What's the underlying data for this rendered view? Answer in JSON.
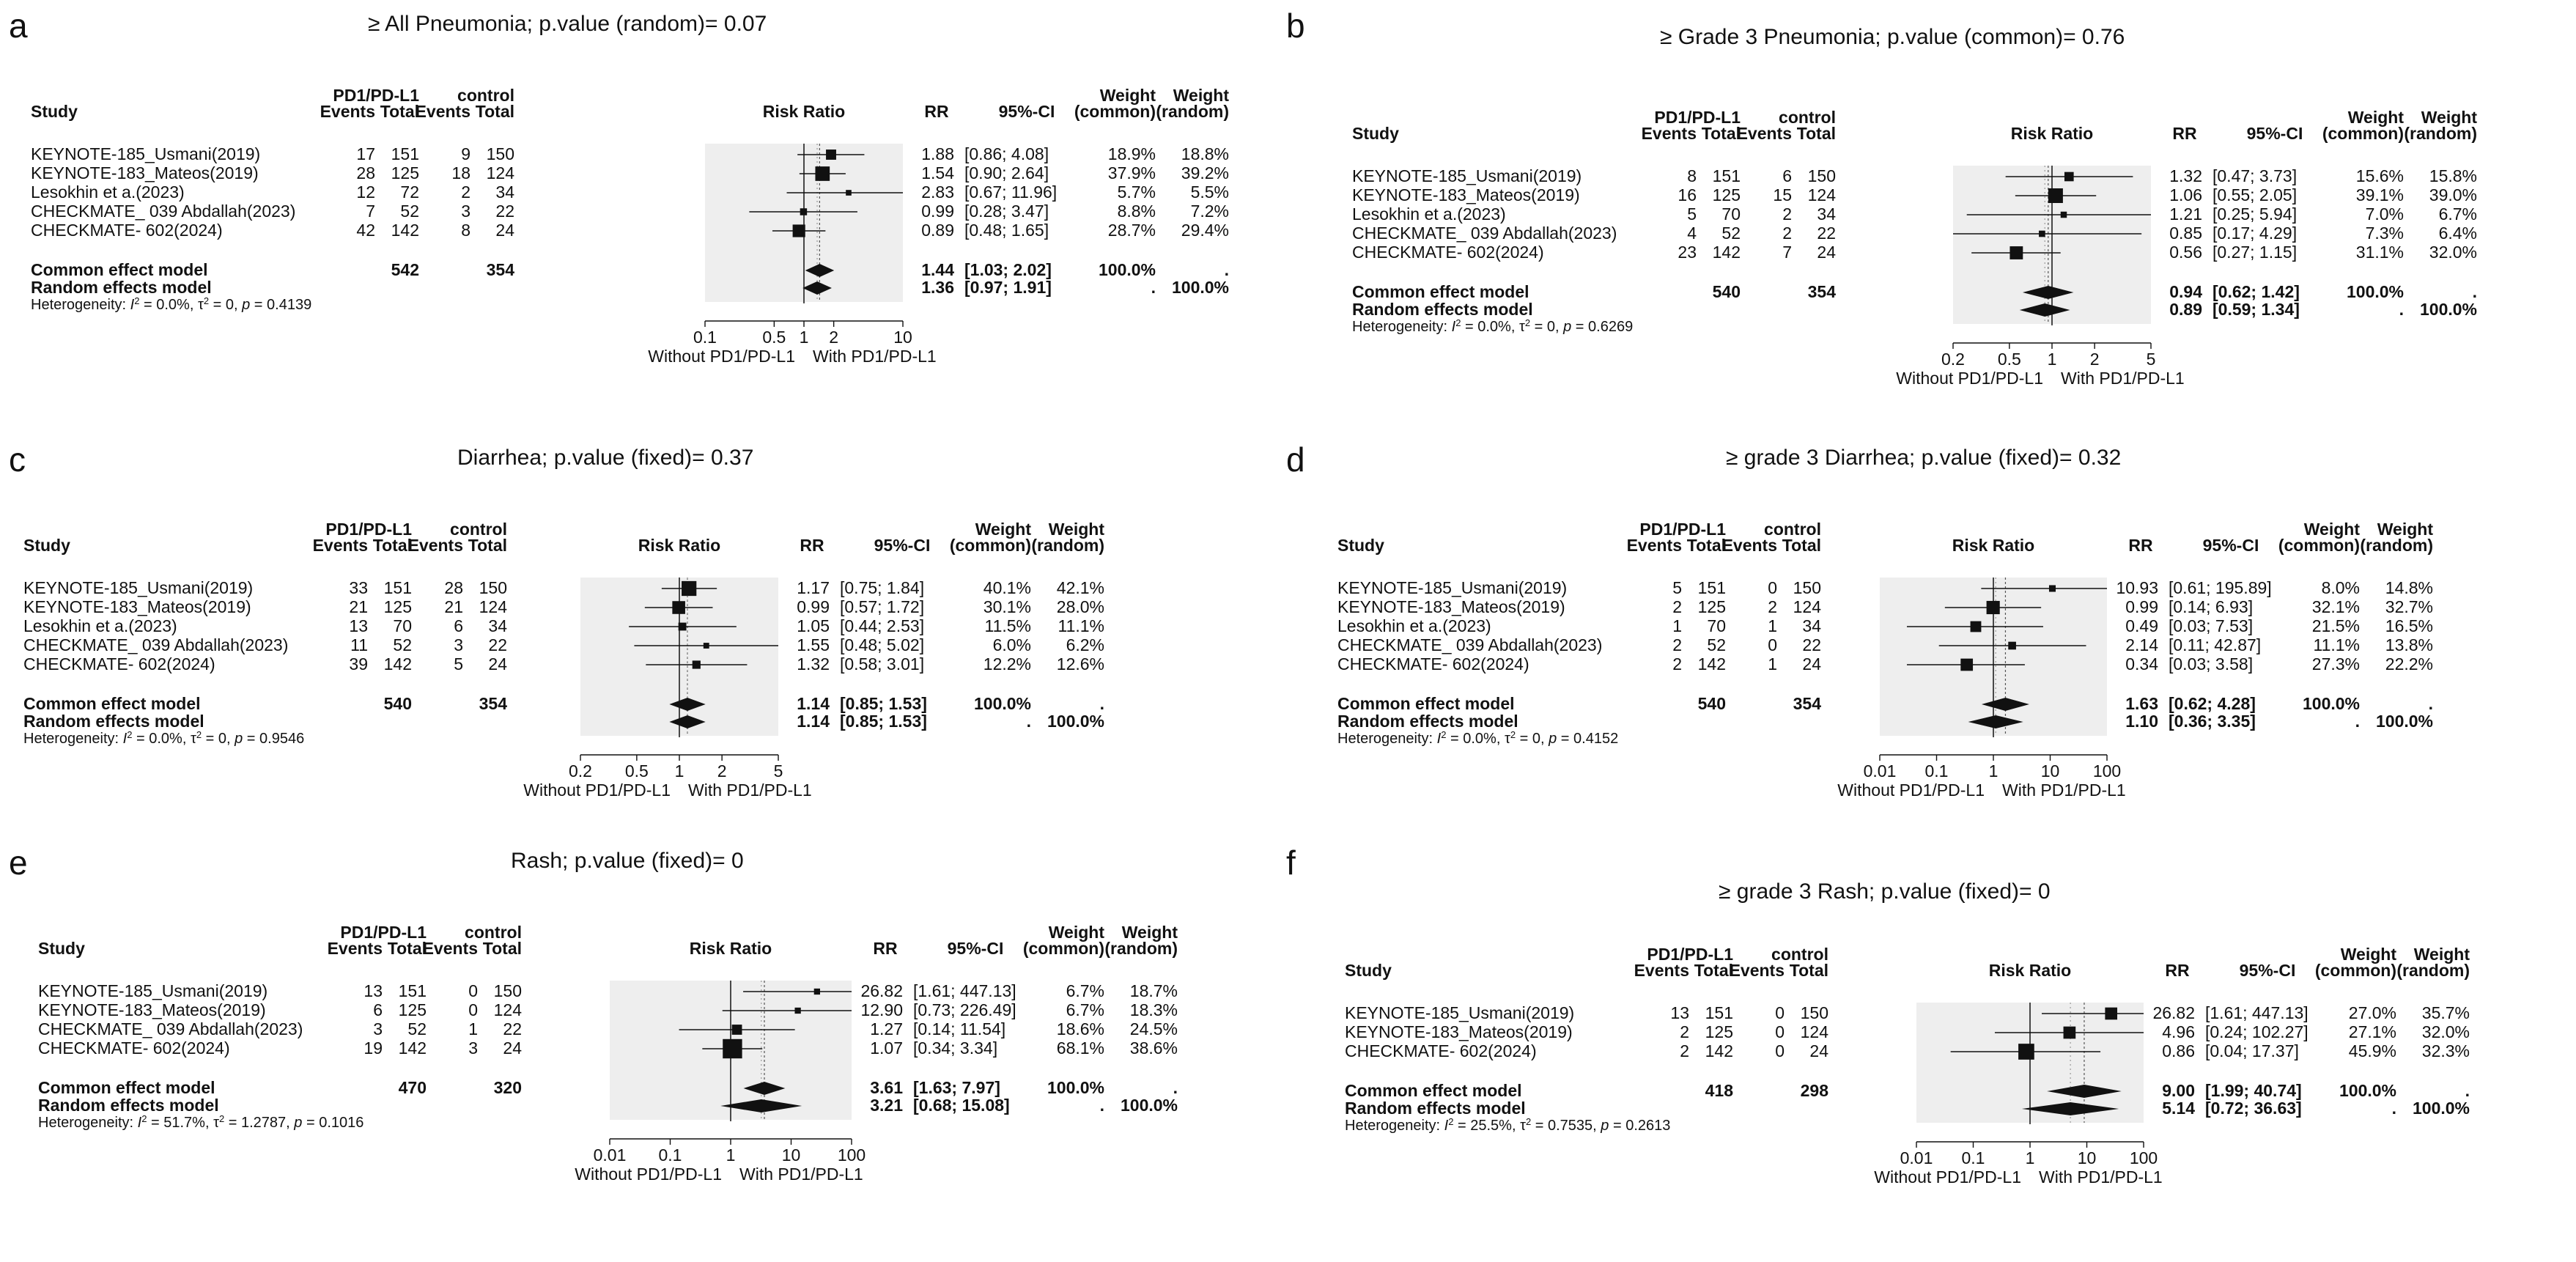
{
  "colors": {
    "background": "#ffffff",
    "plot_band": "#eeeeee",
    "ink": "#111111",
    "ref_line": "#555555",
    "grid": "#999999"
  },
  "columns": {
    "study": "Study",
    "treat_group": "PD1/PD-L1",
    "control_group": "control",
    "events": "Events",
    "total": "Total",
    "risk_ratio": "Risk Ratio",
    "rr": "RR",
    "ci": "95%-CI",
    "weight": "Weight",
    "common": "(common)",
    "random": "(random)"
  },
  "axis_labels": {
    "left": "Without PD1/PD-L1",
    "right": "With PD1/PD-L1"
  },
  "summary_labels": {
    "common": "Common effect model",
    "random": "Random effects model",
    "dot": "."
  },
  "chart_data": [
    {
      "type": "forest",
      "letter": "a",
      "title": "≥ All Pneumonia;  p.value (random)= 0.07",
      "xscale": "log",
      "xlim": [
        0.1,
        10
      ],
      "ticks": [
        {
          "v": 0.1,
          "label": "0.1"
        },
        {
          "v": 0.5,
          "label": "0.5"
        },
        {
          "v": 1,
          "label": "1"
        },
        {
          "v": 2,
          "label": "2"
        },
        {
          "v": 10,
          "label": "10"
        }
      ],
      "studies": [
        {
          "name": "KEYNOTE-185_Usmani(2019)",
          "e1": "17",
          "n1": "151",
          "e2": "9",
          "n2": "150",
          "rr": 1.88,
          "lo": 0.86,
          "hi": 4.08,
          "rr_text": "1.88",
          "ci_text": "[0.86;  4.08]",
          "wc": "18.9%",
          "wr": "18.8%"
        },
        {
          "name": "KEYNOTE-183_Mateos(2019)",
          "e1": "28",
          "n1": "125",
          "e2": "18",
          "n2": "124",
          "rr": 1.54,
          "lo": 0.9,
          "hi": 2.64,
          "rr_text": "1.54",
          "ci_text": "[0.90;  2.64]",
          "wc": "37.9%",
          "wr": "39.2%"
        },
        {
          "name": "Lesokhin et a.(2023)",
          "e1": "12",
          "n1": "72",
          "e2": "2",
          "n2": "34",
          "rr": 2.83,
          "lo": 0.67,
          "hi": 11.96,
          "rr_text": "2.83",
          "ci_text": "[0.67; 11.96]",
          "wc": "5.7%",
          "wr": "5.5%"
        },
        {
          "name": "CHECKMATE_ 039 Abdallah(2023)",
          "e1": "7",
          "n1": "52",
          "e2": "3",
          "n2": "22",
          "rr": 0.99,
          "lo": 0.28,
          "hi": 3.47,
          "rr_text": "0.99",
          "ci_text": "[0.28;  3.47]",
          "wc": "8.8%",
          "wr": "7.2%"
        },
        {
          "name": "CHECKMATE- 602(2024)",
          "e1": "42",
          "n1": "142",
          "e2": "8",
          "n2": "24",
          "rr": 0.89,
          "lo": 0.48,
          "hi": 1.65,
          "rr_text": "0.89",
          "ci_text": "[0.48;  1.65]",
          "wc": "28.7%",
          "wr": "29.4%"
        }
      ],
      "common": {
        "rr": 1.44,
        "lo": 1.03,
        "hi": 2.02,
        "rr_text": "1.44",
        "ci_text": "[1.03;  2.02]",
        "n1": "542",
        "n2": "354",
        "wc": "100.0%"
      },
      "random": {
        "rr": 1.36,
        "lo": 0.97,
        "hi": 1.91,
        "rr_text": "1.36",
        "ci_text": "[0.97;  1.91]",
        "wr": "100.0%"
      },
      "heterogeneity": {
        "prefix": "Heterogeneity:",
        "i2": "0.0%",
        "tau2": "0",
        "p": "0.4139"
      }
    },
    {
      "type": "forest",
      "letter": "b",
      "title": "≥ Grade 3 Pneumonia;  p.value (common)= 0.76",
      "xscale": "log",
      "xlim": [
        0.2,
        5
      ],
      "ticks": [
        {
          "v": 0.2,
          "label": "0.2"
        },
        {
          "v": 0.5,
          "label": "0.5"
        },
        {
          "v": 1,
          "label": "1"
        },
        {
          "v": 2,
          "label": "2"
        },
        {
          "v": 5,
          "label": "5"
        }
      ],
      "studies": [
        {
          "name": "KEYNOTE-185_Usmani(2019)",
          "e1": "8",
          "n1": "151",
          "e2": "6",
          "n2": "150",
          "rr": 1.32,
          "lo": 0.47,
          "hi": 3.73,
          "rr_text": "1.32",
          "ci_text": "[0.47; 3.73]",
          "wc": "15.6%",
          "wr": "15.8%"
        },
        {
          "name": "KEYNOTE-183_Mateos(2019)",
          "e1": "16",
          "n1": "125",
          "e2": "15",
          "n2": "124",
          "rr": 1.06,
          "lo": 0.55,
          "hi": 2.05,
          "rr_text": "1.06",
          "ci_text": "[0.55; 2.05]",
          "wc": "39.1%",
          "wr": "39.0%"
        },
        {
          "name": "Lesokhin et a.(2023)",
          "e1": "5",
          "n1": "70",
          "e2": "2",
          "n2": "34",
          "rr": 1.21,
          "lo": 0.25,
          "hi": 5.94,
          "rr_text": "1.21",
          "ci_text": "[0.25; 5.94]",
          "wc": "7.0%",
          "wr": "6.7%"
        },
        {
          "name": "CHECKMATE_ 039 Abdallah(2023)",
          "e1": "4",
          "n1": "52",
          "e2": "2",
          "n2": "22",
          "rr": 0.85,
          "lo": 0.17,
          "hi": 4.29,
          "rr_text": "0.85",
          "ci_text": "[0.17; 4.29]",
          "wc": "7.3%",
          "wr": "6.4%"
        },
        {
          "name": "CHECKMATE- 602(2024)",
          "e1": "23",
          "n1": "142",
          "e2": "7",
          "n2": "24",
          "rr": 0.56,
          "lo": 0.27,
          "hi": 1.15,
          "rr_text": "0.56",
          "ci_text": "[0.27; 1.15]",
          "wc": "31.1%",
          "wr": "32.0%"
        }
      ],
      "common": {
        "rr": 0.94,
        "lo": 0.62,
        "hi": 1.42,
        "rr_text": "0.94",
        "ci_text": "[0.62; 1.42]",
        "n1": "540",
        "n2": "354",
        "wc": "100.0%"
      },
      "random": {
        "rr": 0.89,
        "lo": 0.59,
        "hi": 1.34,
        "rr_text": "0.89",
        "ci_text": "[0.59; 1.34]",
        "wr": "100.0%"
      },
      "heterogeneity": {
        "prefix": "Heterogeneity:",
        "i2": "0.0%",
        "tau2": "0",
        "p": "0.6269"
      }
    },
    {
      "type": "forest",
      "letter": "c",
      "title": "Diarrhea;  p.value (fixed)= 0.37",
      "xscale": "log",
      "xlim": [
        0.2,
        5
      ],
      "ticks": [
        {
          "v": 0.2,
          "label": "0.2"
        },
        {
          "v": 0.5,
          "label": "0.5"
        },
        {
          "v": 1,
          "label": "1"
        },
        {
          "v": 2,
          "label": "2"
        },
        {
          "v": 5,
          "label": "5"
        }
      ],
      "studies": [
        {
          "name": "KEYNOTE-185_Usmani(2019)",
          "e1": "33",
          "n1": "151",
          "e2": "28",
          "n2": "150",
          "rr": 1.17,
          "lo": 0.75,
          "hi": 1.84,
          "rr_text": "1.17",
          "ci_text": "[0.75; 1.84]",
          "wc": "40.1%",
          "wr": "42.1%"
        },
        {
          "name": "KEYNOTE-183_Mateos(2019)",
          "e1": "21",
          "n1": "125",
          "e2": "21",
          "n2": "124",
          "rr": 0.99,
          "lo": 0.57,
          "hi": 1.72,
          "rr_text": "0.99",
          "ci_text": "[0.57; 1.72]",
          "wc": "30.1%",
          "wr": "28.0%"
        },
        {
          "name": "Lesokhin et a.(2023)",
          "e1": "13",
          "n1": "70",
          "e2": "6",
          "n2": "34",
          "rr": 1.05,
          "lo": 0.44,
          "hi": 2.53,
          "rr_text": "1.05",
          "ci_text": "[0.44; 2.53]",
          "wc": "11.5%",
          "wr": "11.1%"
        },
        {
          "name": "CHECKMATE_ 039 Abdallah(2023)",
          "e1": "11",
          "n1": "52",
          "e2": "3",
          "n2": "22",
          "rr": 1.55,
          "lo": 0.48,
          "hi": 5.02,
          "rr_text": "1.55",
          "ci_text": "[0.48; 5.02]",
          "wc": "6.0%",
          "wr": "6.2%"
        },
        {
          "name": "CHECKMATE- 602(2024)",
          "e1": "39",
          "n1": "142",
          "e2": "5",
          "n2": "24",
          "rr": 1.32,
          "lo": 0.58,
          "hi": 3.01,
          "rr_text": "1.32",
          "ci_text": "[0.58; 3.01]",
          "wc": "12.2%",
          "wr": "12.6%"
        }
      ],
      "common": {
        "rr": 1.14,
        "lo": 0.85,
        "hi": 1.53,
        "rr_text": "1.14",
        "ci_text": "[0.85; 1.53]",
        "n1": "540",
        "n2": "354",
        "wc": "100.0%"
      },
      "random": {
        "rr": 1.14,
        "lo": 0.85,
        "hi": 1.53,
        "rr_text": "1.14",
        "ci_text": "[0.85; 1.53]",
        "wr": "100.0%"
      },
      "heterogeneity": {
        "prefix": "Heterogeneity:",
        "i2": "0.0%",
        "tau2": "0",
        "p": "0.9546"
      }
    },
    {
      "type": "forest",
      "letter": "d",
      "title": "≥ grade 3 Diarrhea;  p.value (fixed)= 0.32",
      "xscale": "log",
      "xlim": [
        0.01,
        100
      ],
      "ticks": [
        {
          "v": 0.01,
          "label": "0.01"
        },
        {
          "v": 0.1,
          "label": "0.1"
        },
        {
          "v": 1,
          "label": "1"
        },
        {
          "v": 10,
          "label": "10"
        },
        {
          "v": 100,
          "label": "100"
        }
      ],
      "studies": [
        {
          "name": "KEYNOTE-185_Usmani(2019)",
          "e1": "5",
          "n1": "151",
          "e2": "0",
          "n2": "150",
          "rr": 10.93,
          "lo": 0.61,
          "hi": 195.89,
          "rr_text": "10.93",
          "ci_text": "[0.61; 195.89]",
          "wc": "8.0%",
          "wr": "14.8%"
        },
        {
          "name": "KEYNOTE-183_Mateos(2019)",
          "e1": "2",
          "n1": "125",
          "e2": "2",
          "n2": "124",
          "rr": 0.99,
          "lo": 0.14,
          "hi": 6.93,
          "rr_text": "0.99",
          "ci_text": "[0.14;   6.93]",
          "wc": "32.1%",
          "wr": "32.7%"
        },
        {
          "name": "Lesokhin et a.(2023)",
          "e1": "1",
          "n1": "70",
          "e2": "1",
          "n2": "34",
          "rr": 0.49,
          "lo": 0.03,
          "hi": 7.53,
          "rr_text": "0.49",
          "ci_text": "[0.03;   7.53]",
          "wc": "21.5%",
          "wr": "16.5%"
        },
        {
          "name": "CHECKMATE_ 039 Abdallah(2023)",
          "e1": "2",
          "n1": "52",
          "e2": "0",
          "n2": "22",
          "rr": 2.14,
          "lo": 0.11,
          "hi": 42.87,
          "rr_text": "2.14",
          "ci_text": "[0.11;  42.87]",
          "wc": "11.1%",
          "wr": "13.8%"
        },
        {
          "name": "CHECKMATE- 602(2024)",
          "e1": "2",
          "n1": "142",
          "e2": "1",
          "n2": "24",
          "rr": 0.34,
          "lo": 0.03,
          "hi": 3.58,
          "rr_text": "0.34",
          "ci_text": "[0.03;   3.58]",
          "wc": "27.3%",
          "wr": "22.2%"
        }
      ],
      "common": {
        "rr": 1.63,
        "lo": 0.62,
        "hi": 4.28,
        "rr_text": "1.63",
        "ci_text": "[0.62;   4.28]",
        "n1": "540",
        "n2": "354",
        "wc": "100.0%"
      },
      "random": {
        "rr": 1.1,
        "lo": 0.36,
        "hi": 3.35,
        "rr_text": "1.10",
        "ci_text": "[0.36;   3.35]",
        "wr": "100.0%"
      },
      "heterogeneity": {
        "prefix": "Heterogeneity:",
        "i2": "0.0%",
        "tau2": "0",
        "p": "0.4152"
      }
    },
    {
      "type": "forest",
      "letter": "e",
      "title": "Rash;  p.value (fixed)= 0",
      "xscale": "log",
      "xlim": [
        0.01,
        100
      ],
      "ticks": [
        {
          "v": 0.01,
          "label": "0.01"
        },
        {
          "v": 0.1,
          "label": "0.1"
        },
        {
          "v": 1,
          "label": "1"
        },
        {
          "v": 10,
          "label": "10"
        },
        {
          "v": 100,
          "label": "100"
        }
      ],
      "studies": [
        {
          "name": "KEYNOTE-185_Usmani(2019)",
          "e1": "13",
          "n1": "151",
          "e2": "0",
          "n2": "150",
          "rr": 26.82,
          "lo": 1.61,
          "hi": 447.13,
          "rr_text": "26.82",
          "ci_text": "[1.61; 447.13]",
          "wc": "6.7%",
          "wr": "18.7%"
        },
        {
          "name": "KEYNOTE-183_Mateos(2019)",
          "e1": "6",
          "n1": "125",
          "e2": "0",
          "n2": "124",
          "rr": 12.9,
          "lo": 0.73,
          "hi": 226.49,
          "rr_text": "12.90",
          "ci_text": "[0.73; 226.49]",
          "wc": "6.7%",
          "wr": "18.3%"
        },
        {
          "name": "CHECKMATE_ 039 Abdallah(2023)",
          "e1": "3",
          "n1": "52",
          "e2": "1",
          "n2": "22",
          "rr": 1.27,
          "lo": 0.14,
          "hi": 11.54,
          "rr_text": "1.27",
          "ci_text": "[0.14;  11.54]",
          "wc": "18.6%",
          "wr": "24.5%"
        },
        {
          "name": "CHECKMATE- 602(2024)",
          "e1": "19",
          "n1": "142",
          "e2": "3",
          "n2": "24",
          "rr": 1.07,
          "lo": 0.34,
          "hi": 3.34,
          "rr_text": "1.07",
          "ci_text": "[0.34;   3.34]",
          "wc": "68.1%",
          "wr": "38.6%"
        }
      ],
      "common": {
        "rr": 3.61,
        "lo": 1.63,
        "hi": 7.97,
        "rr_text": "3.61",
        "ci_text": "[1.63;   7.97]",
        "n1": "470",
        "n2": "320",
        "wc": "100.0%"
      },
      "random": {
        "rr": 3.21,
        "lo": 0.68,
        "hi": 15.08,
        "rr_text": "3.21",
        "ci_text": "[0.68;  15.08]",
        "wr": "100.0%"
      },
      "heterogeneity": {
        "prefix": "Heterogeneity:",
        "i2": "51.7%",
        "tau2": "1.2787",
        "p": "0.1016"
      }
    },
    {
      "type": "forest",
      "letter": "f",
      "title": "≥ grade 3 Rash;  p.value (fixed)= 0",
      "xscale": "log",
      "xlim": [
        0.01,
        100
      ],
      "ticks": [
        {
          "v": 0.01,
          "label": "0.01"
        },
        {
          "v": 0.1,
          "label": "0.1"
        },
        {
          "v": 1,
          "label": "1"
        },
        {
          "v": 10,
          "label": "10"
        },
        {
          "v": 100,
          "label": "100"
        }
      ],
      "studies": [
        {
          "name": "KEYNOTE-185_Usmani(2019)",
          "e1": "13",
          "n1": "151",
          "e2": "0",
          "n2": "150",
          "rr": 26.82,
          "lo": 1.61,
          "hi": 447.13,
          "rr_text": "26.82",
          "ci_text": "[1.61; 447.13]",
          "wc": "27.0%",
          "wr": "35.7%"
        },
        {
          "name": "KEYNOTE-183_Mateos(2019)",
          "e1": "2",
          "n1": "125",
          "e2": "0",
          "n2": "124",
          "rr": 4.96,
          "lo": 0.24,
          "hi": 102.27,
          "rr_text": "4.96",
          "ci_text": "[0.24; 102.27]",
          "wc": "27.1%",
          "wr": "32.0%"
        },
        {
          "name": "CHECKMATE- 602(2024)",
          "e1": "2",
          "n1": "142",
          "e2": "0",
          "n2": "24",
          "rr": 0.86,
          "lo": 0.04,
          "hi": 17.37,
          "rr_text": "0.86",
          "ci_text": "[0.04;  17.37]",
          "wc": "45.9%",
          "wr": "32.3%"
        }
      ],
      "common": {
        "rr": 9.0,
        "lo": 1.99,
        "hi": 40.74,
        "rr_text": "9.00",
        "ci_text": "[1.99;  40.74]",
        "n1": "418",
        "n2": "298",
        "wc": "100.0%"
      },
      "random": {
        "rr": 5.14,
        "lo": 0.72,
        "hi": 36.63,
        "rr_text": "5.14",
        "ci_text": "[0.72;  36.63]",
        "wr": "100.0%"
      },
      "heterogeneity": {
        "prefix": "Heterogeneity:",
        "i2": "25.5%",
        "tau2": "0.7535",
        "p": "0.2613"
      }
    }
  ]
}
